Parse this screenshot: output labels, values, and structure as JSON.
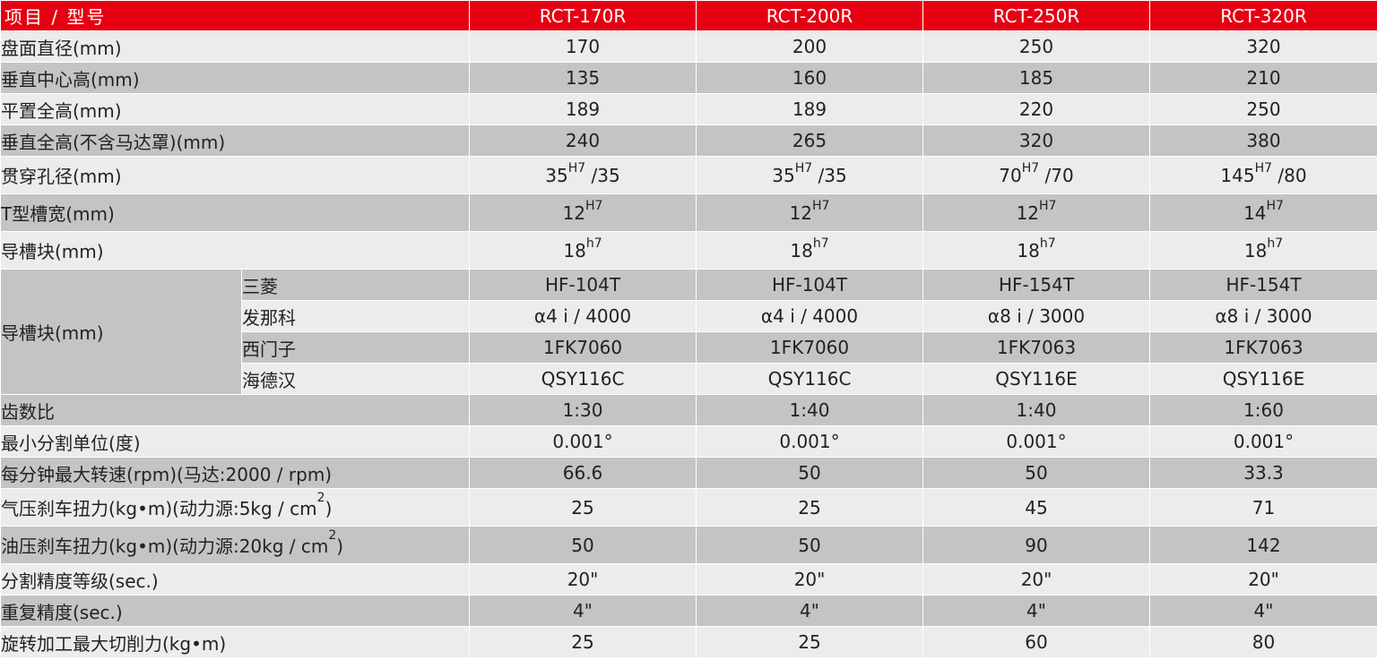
{
  "header": {
    "label": "项目 / 型号",
    "models": [
      "RCT-170R",
      "RCT-200R",
      "RCT-250R",
      "RCT-320R"
    ]
  },
  "rows_top": [
    {
      "label": "盘面直径(mm)",
      "values": [
        "170",
        "200",
        "250",
        "320"
      ]
    },
    {
      "label": "垂直中心高(mm)",
      "values": [
        "135",
        "160",
        "185",
        "210"
      ]
    },
    {
      "label": "平置全高(mm)",
      "values": [
        "189",
        "189",
        "220",
        "250"
      ]
    },
    {
      "label": "垂直全高(不含马达罩)(mm)",
      "values": [
        "240",
        "265",
        "320",
        "380"
      ]
    }
  ],
  "bore": {
    "label": "贯穿孔径(mm)",
    "cells": [
      {
        "a": "35",
        "sup": "H7",
        "b": " /35"
      },
      {
        "a": "35",
        "sup": "H7",
        "b": " /35"
      },
      {
        "a": "70",
        "sup": "H7",
        "b": " /70"
      },
      {
        "a": "145",
        "sup": "H7",
        "b": " /80"
      }
    ]
  },
  "tslot": {
    "label": "T型槽宽(mm)",
    "cells": [
      {
        "a": "12",
        "sup": "H7"
      },
      {
        "a": "12",
        "sup": "H7"
      },
      {
        "a": "12",
        "sup": "H7"
      },
      {
        "a": "14",
        "sup": "H7"
      }
    ]
  },
  "guide": {
    "label": "导槽块(mm)",
    "cells": [
      {
        "a": "18",
        "sup": "h7"
      },
      {
        "a": "18",
        "sup": "h7"
      },
      {
        "a": "18",
        "sup": "h7"
      },
      {
        "a": "18",
        "sup": "h7"
      }
    ]
  },
  "motor": {
    "label": "导槽块(mm)",
    "rows": [
      {
        "brand": "三菱",
        "values": [
          "HF-104T",
          "HF-104T",
          "HF-154T",
          "HF-154T"
        ]
      },
      {
        "brand": "发那科",
        "values": [
          "α4 i / 4000",
          "α4 i / 4000",
          "α8 i / 3000",
          "α8 i / 3000"
        ]
      },
      {
        "brand": "西门子",
        "values": [
          "1FK7060",
          "1FK7060",
          "1FK7063",
          "1FK7063"
        ]
      },
      {
        "brand": "海德汉",
        "values": [
          "QSY116C",
          "QSY116C",
          "QSY116E",
          "QSY116E"
        ]
      }
    ]
  },
  "rows_mid": [
    {
      "label": "齿数比",
      "values": [
        "1:30",
        "1:40",
        "1:40",
        "1:60"
      ]
    },
    {
      "label": "最小分割单位(度)",
      "values": [
        "0.001°",
        "0.001°",
        "0.001°",
        "0.001°"
      ]
    },
    {
      "label": "每分钟最大转速(rpm)(马达:2000 / rpm)",
      "values": [
        "66.6",
        "50",
        "50",
        "33.3"
      ]
    }
  ],
  "air_brake": {
    "label_pre": "气压刹车扭力(kg•m)(动力源:5kg / cm",
    "label_sup": "2",
    "label_post": ")",
    "values": [
      "25",
      "25",
      "45",
      "71"
    ]
  },
  "oil_brake": {
    "label_pre": "油压刹车扭力(kg•m)(动力源:20kg / cm",
    "label_sup": "2",
    "label_post": ")",
    "values": [
      "50",
      "50",
      "90",
      "142"
    ]
  },
  "rows_bottom": [
    {
      "label": "分割精度等级(sec.)",
      "values": [
        "20\"",
        "20\"",
        "20\"",
        "20\""
      ]
    },
    {
      "label": "重复精度(sec.)",
      "values": [
        "4\"",
        "4\"",
        "4\"",
        "4\""
      ]
    },
    {
      "label": "旋转加工最大切削力(kg•m)",
      "values": [
        "25",
        "25",
        "60",
        "80"
      ]
    }
  ],
  "colors": {
    "header_bg": "#e60012",
    "row_light": "#ececec",
    "row_dark": "#c4c4c4"
  }
}
